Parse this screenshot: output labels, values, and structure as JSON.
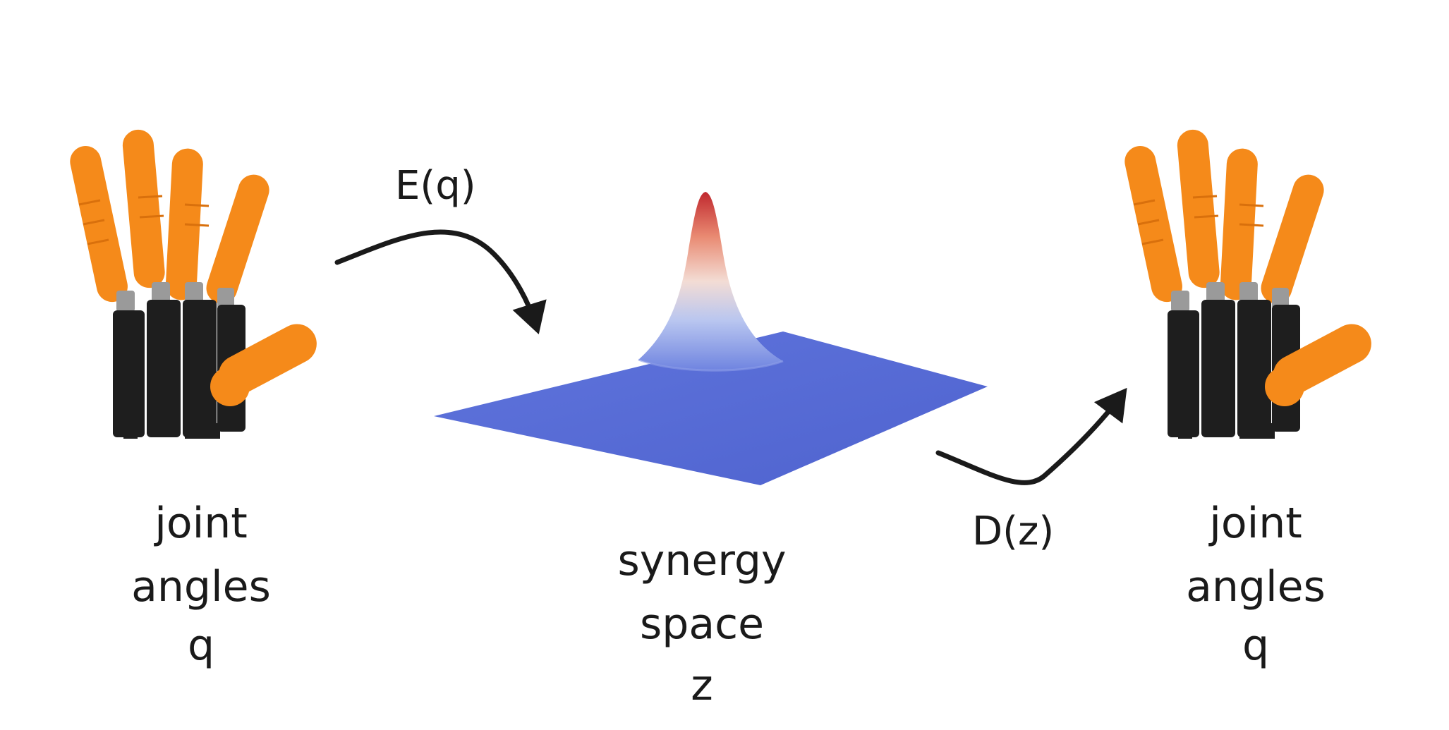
{
  "left_hand": {
    "label_lines": [
      "joint",
      "angles",
      "q"
    ]
  },
  "encoder": {
    "label": "E(q)"
  },
  "synergy": {
    "label_lines": [
      "synergy",
      "space",
      "z"
    ],
    "colors": {
      "base": "#5a6fd8",
      "mid": "#dcdcf0",
      "peak": "#c0282e"
    }
  },
  "decoder": {
    "label": "D(z)"
  },
  "right_hand": {
    "label_lines": [
      "joint",
      "angles",
      "q"
    ]
  },
  "colors": {
    "finger": "#f58a1a",
    "finger_shade": "#d9700c",
    "palm": "#1e1e1e",
    "joint": "#9a9a9a",
    "ink": "#1a1a1a"
  }
}
